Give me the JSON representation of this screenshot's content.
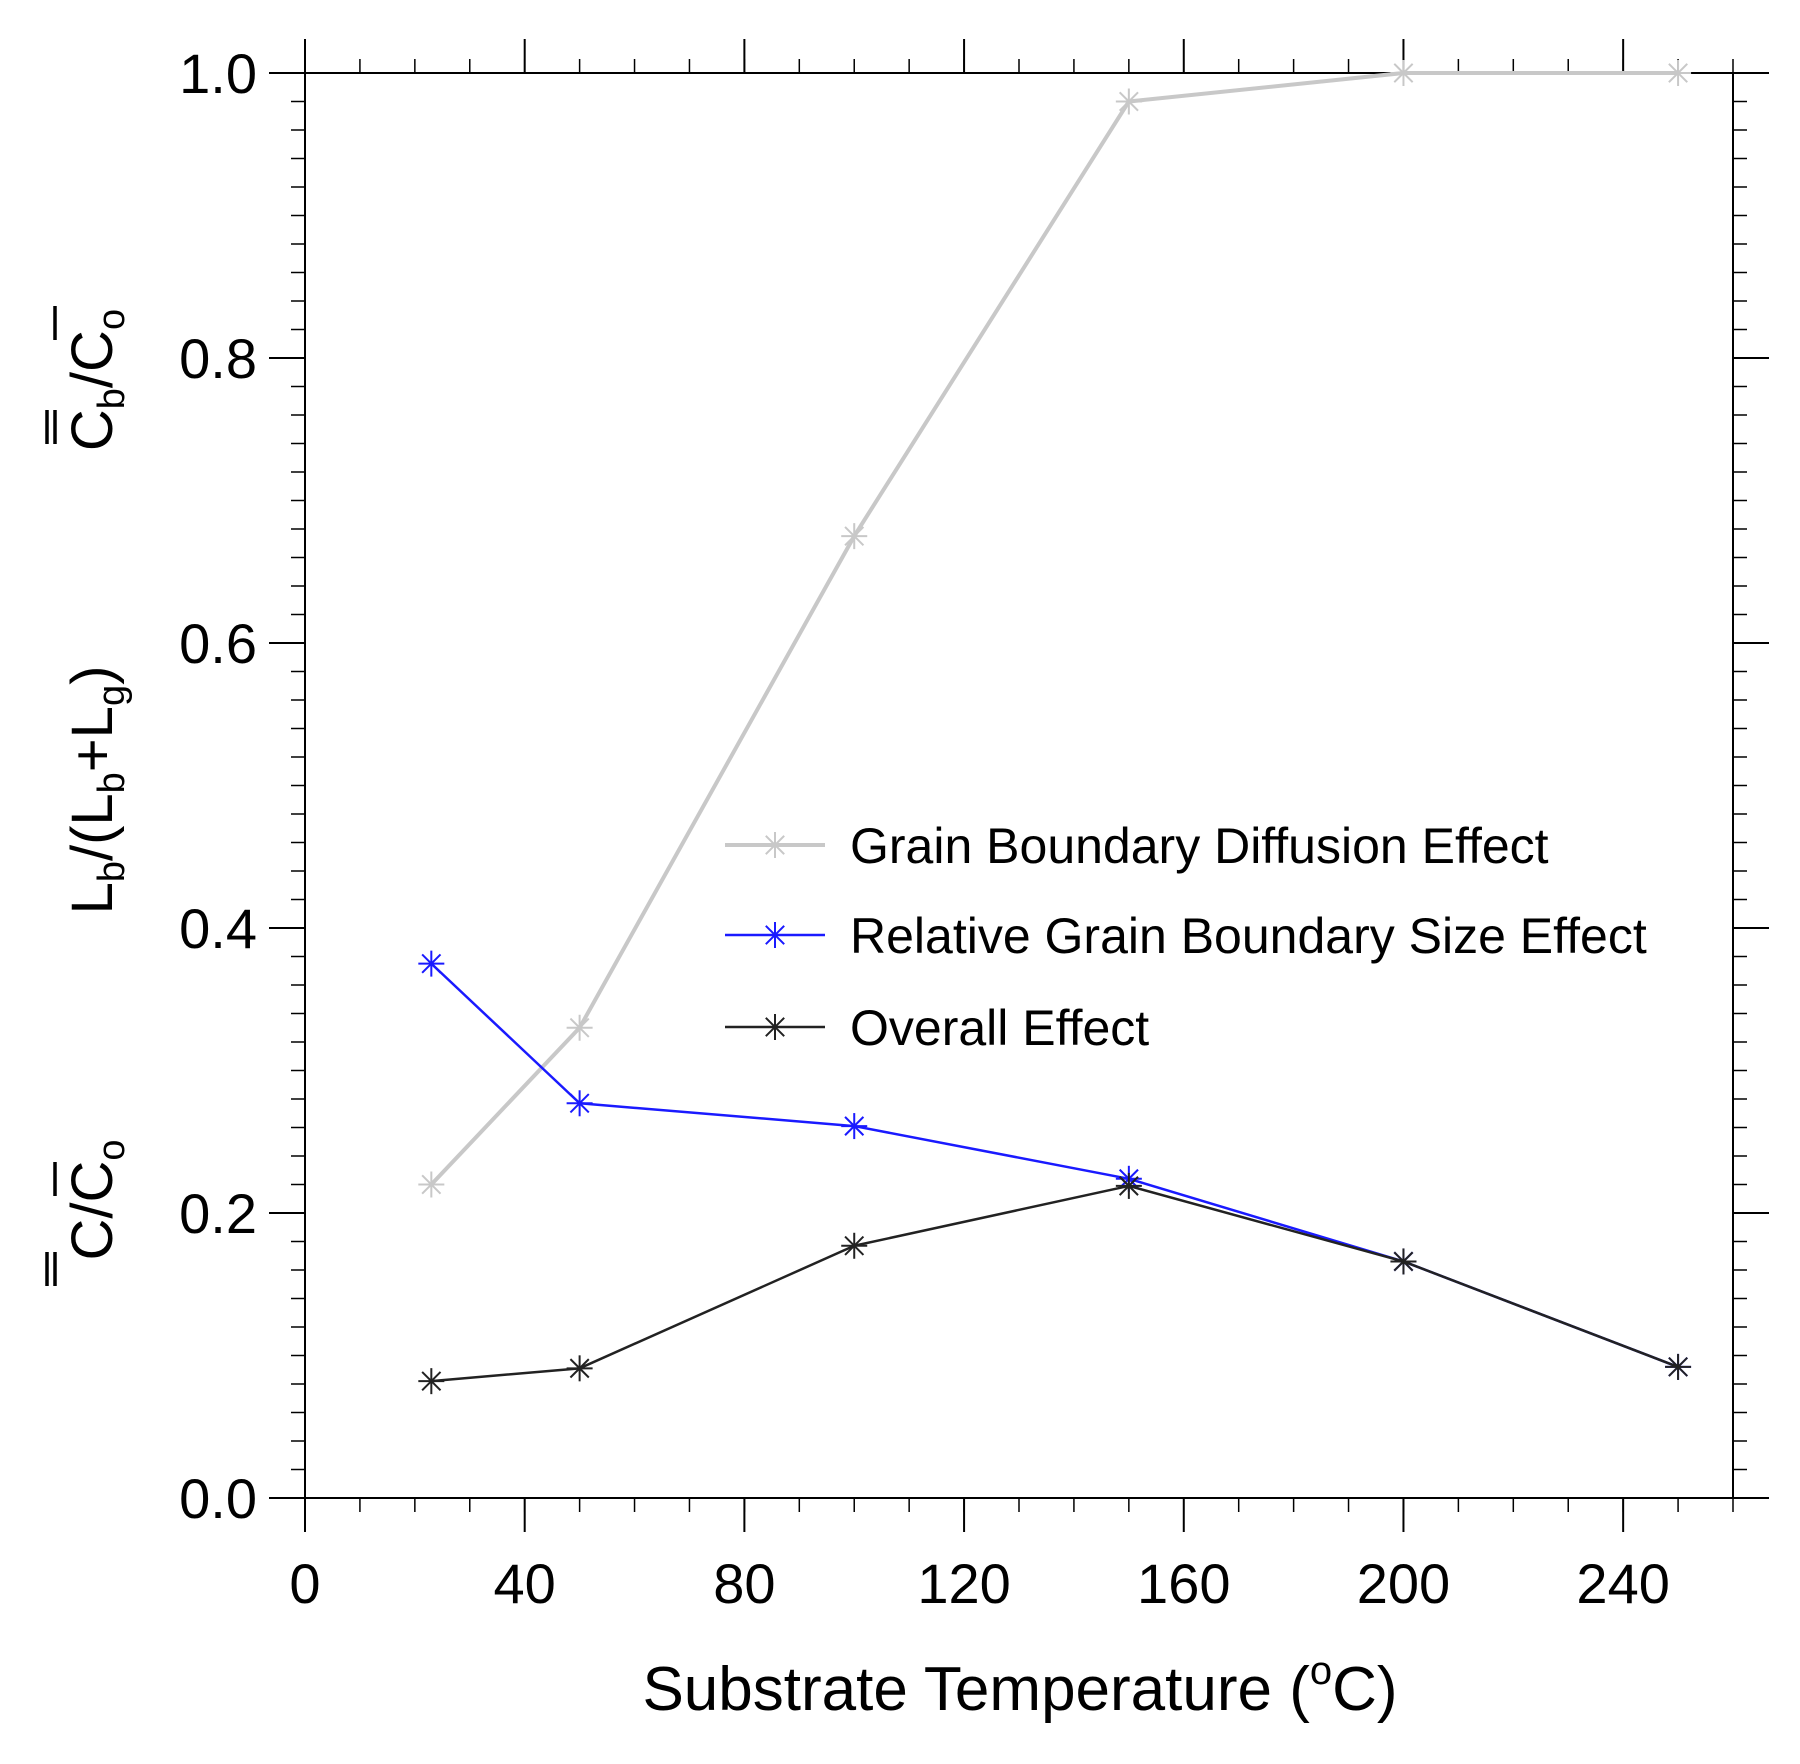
{
  "chart_data": {
    "type": "line",
    "title": "",
    "xlabel": "Substrate Temperature (°C)",
    "xlabel_parts": {
      "main": "Substrate Temperature (",
      "sup": "o",
      "end": "C)"
    },
    "ylabels": [
      {
        "text": "C̄b/C̄o",
        "base1": "C",
        "sub1": "b",
        "sep": "/",
        "base2": "C",
        "sub2": "o"
      },
      {
        "text": "Lb/(Lb+Lg)",
        "p1": "L",
        "s1": "b",
        "p2": "/(L",
        "s2": "b",
        "p3": "+L",
        "s3": "g",
        "p4": ")"
      },
      {
        "text": "C̄/C̄o",
        "base1": "C",
        "sep": "/",
        "base2": "C",
        "sub2": "o"
      }
    ],
    "xlim": [
      0,
      260
    ],
    "ylim": [
      0,
      1.0
    ],
    "x_ticks": [
      0,
      40,
      80,
      120,
      160,
      200,
      240
    ],
    "y_ticks": [
      0.0,
      0.2,
      0.4,
      0.6,
      0.8,
      1.0
    ],
    "x_tick_labels": [
      "0",
      "40",
      "80",
      "120",
      "160",
      "200",
      "240"
    ],
    "y_tick_labels": [
      "0.0",
      "0.2",
      "0.4",
      "0.6",
      "0.8",
      "1.0"
    ],
    "x_minor_step": 10,
    "y_minor_step": 0.02,
    "series": [
      {
        "name": "Grain Boundary Diffusion Effect",
        "color": "#c8c8c8",
        "x": [
          23,
          50,
          100,
          150,
          200,
          250
        ],
        "y": [
          0.22,
          0.33,
          0.675,
          0.98,
          1.0,
          1.0
        ]
      },
      {
        "name": "Relative Grain Boundary Size Effect",
        "color": "#1a1aff",
        "x": [
          23,
          50,
          100,
          150,
          200,
          250
        ],
        "y": [
          0.375,
          0.277,
          0.261,
          0.224,
          0.166,
          0.092
        ]
      },
      {
        "name": "Overall Effect",
        "color": "#222222",
        "x": [
          23,
          50,
          100,
          150,
          200,
          250
        ],
        "y": [
          0.082,
          0.091,
          0.177,
          0.219,
          0.166,
          0.092
        ]
      }
    ],
    "legend": "center",
    "grid": false
  }
}
